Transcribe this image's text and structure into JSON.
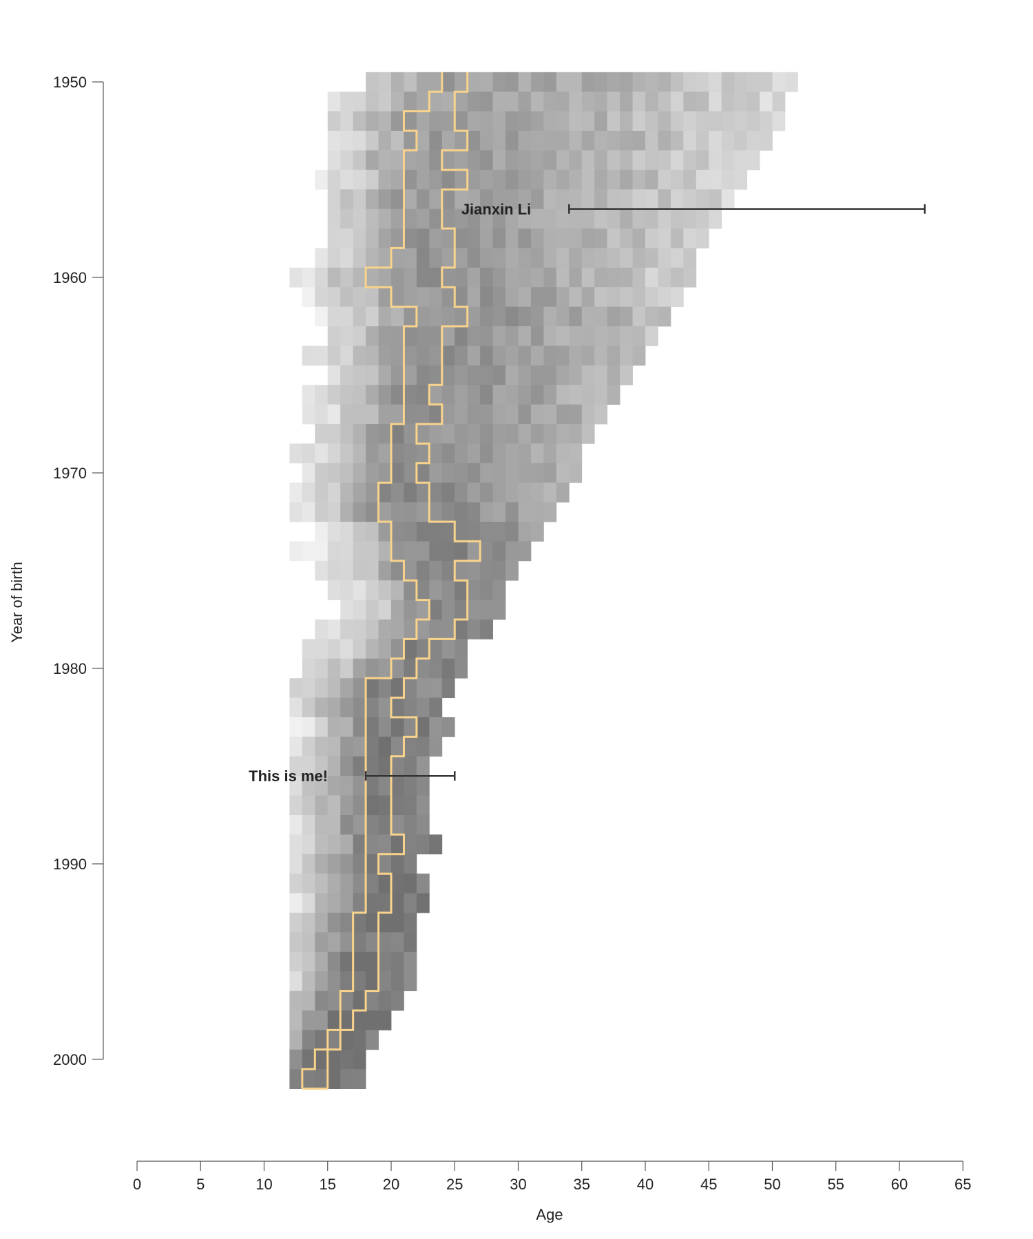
{
  "chart_data": {
    "type": "heatmap",
    "title": "",
    "xlabel": "Age",
    "ylabel": "Year of birth",
    "xlim": [
      0,
      65
    ],
    "ylim": [
      1950,
      2003
    ],
    "y_inverted": true,
    "x_ticks": [
      0,
      5,
      10,
      15,
      20,
      25,
      30,
      35,
      40,
      45,
      50,
      55,
      60,
      65
    ],
    "y_ticks": [
      1950,
      1960,
      1970,
      1980,
      1990,
      2000
    ],
    "cell_colors": {
      "low": "#f5f5f5",
      "high": "#707070"
    },
    "boundary_color": "#f8d38c",
    "quantile_band": {
      "years": [
        1950,
        1951,
        1952,
        1953,
        1954,
        1955,
        1956,
        1957,
        1958,
        1959,
        1960,
        1961,
        1962,
        1963,
        1964,
        1965,
        1966,
        1967,
        1968,
        1969,
        1970,
        1971,
        1972,
        1973,
        1974,
        1975,
        1976,
        1977,
        1978,
        1979,
        1980,
        1981,
        1982,
        1983,
        1984,
        1985,
        1986,
        1987,
        1988,
        1989,
        1990,
        1991,
        1992,
        1993,
        1994,
        1995,
        1996,
        1997,
        1998,
        1999,
        2000,
        2001
      ],
      "lower_age": [
        24,
        23,
        21,
        22,
        21,
        21,
        21,
        21,
        21,
        20,
        18,
        20,
        22,
        21,
        21,
        21,
        21,
        21,
        20,
        20,
        20,
        19,
        19,
        20,
        20,
        21,
        22,
        23,
        22,
        21,
        20,
        18,
        18,
        18,
        18,
        18,
        18,
        18,
        18,
        18,
        18,
        18,
        18,
        17,
        17,
        17,
        17,
        16,
        16,
        15,
        14,
        13
      ],
      "upper_age": [
        26,
        25,
        25,
        26,
        24,
        26,
        24,
        24,
        25,
        25,
        24,
        25,
        26,
        24,
        24,
        24,
        23,
        24,
        22,
        23,
        22,
        23,
        23,
        25,
        27,
        25,
        26,
        26,
        25,
        23,
        22,
        21,
        20,
        22,
        21,
        20,
        20,
        20,
        20,
        21,
        19,
        20,
        20,
        19,
        19,
        19,
        19,
        18,
        17,
        16,
        15,
        15
      ]
    },
    "annotations": [
      {
        "label": "Jianxin Li",
        "year": 1956.5,
        "age_start": 34,
        "age_end": 62
      },
      {
        "label": "This is me!",
        "year": 1985.5,
        "age_start": 18,
        "age_end": 25
      }
    ],
    "legend": "none",
    "grid": false
  }
}
